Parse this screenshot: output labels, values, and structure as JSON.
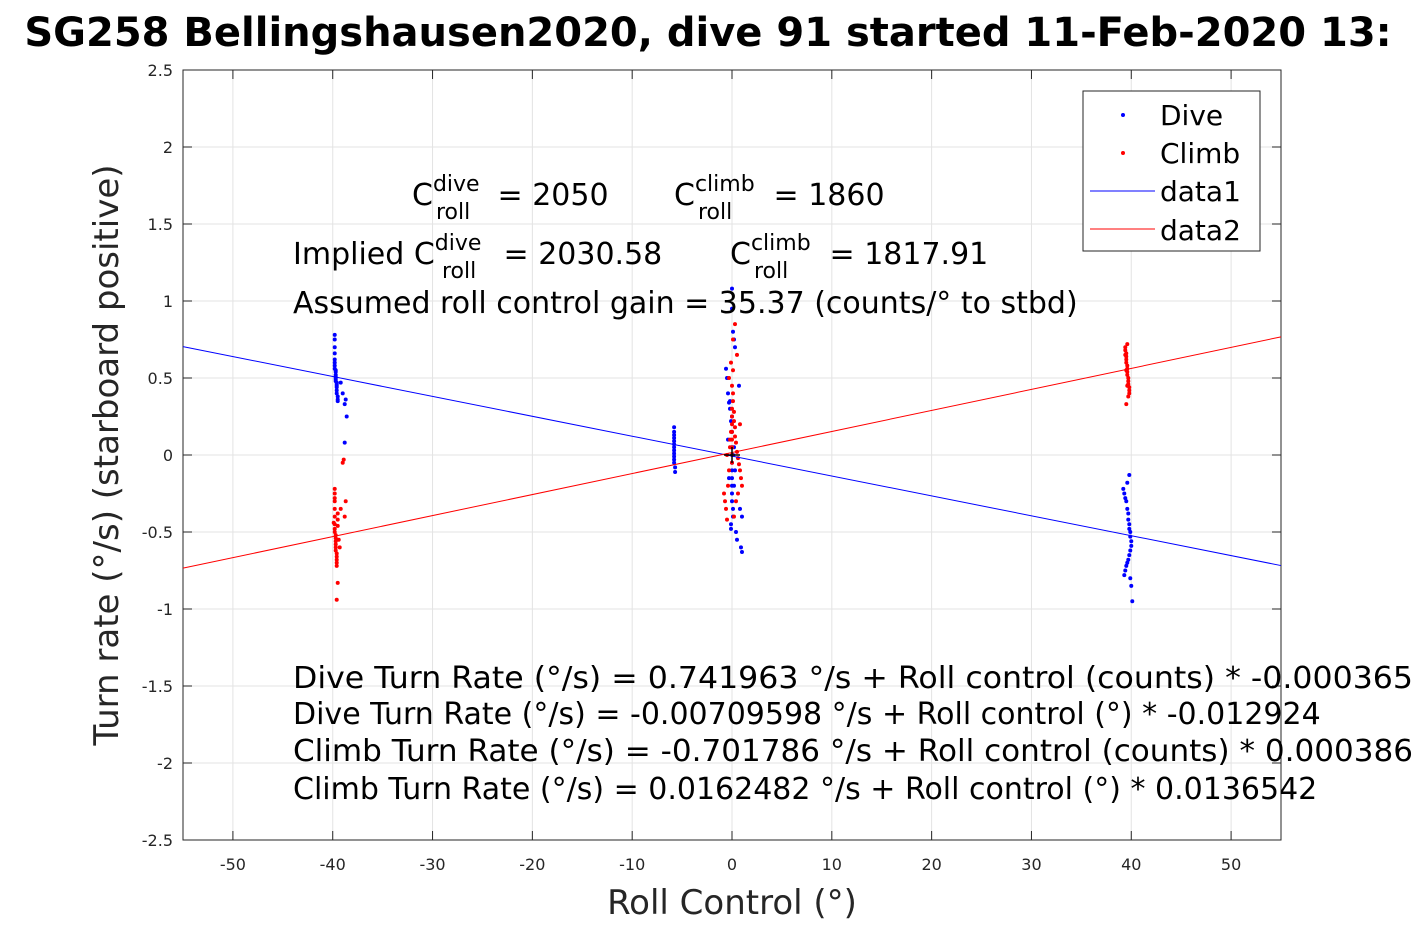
{
  "chart_data": {
    "type": "scatter",
    "title": "SG258 Bellingshausen2020, dive 91 started 11-Feb-2020 13:",
    "xlabel": "Roll Control (°)",
    "ylabel": "Turn rate (°/s) (starboard positive)",
    "xlim": [
      -55,
      55
    ],
    "ylim": [
      -2.5,
      2.5
    ],
    "xticks": [
      -50,
      -40,
      -30,
      -20,
      -10,
      0,
      10,
      20,
      30,
      40,
      50
    ],
    "yticks": [
      -2.5,
      -2,
      -1.5,
      -1,
      -0.5,
      0,
      0.5,
      1,
      1.5,
      2,
      2.5
    ],
    "xtick_labels": [
      "-50",
      "-40",
      "-30",
      "-20",
      "-10",
      "0",
      "10",
      "20",
      "30",
      "40",
      "50"
    ],
    "ytick_labels": [
      "-2.5",
      "-2",
      "-1.5",
      "-1",
      "-0.5",
      "0",
      "0.5",
      "1",
      "1.5",
      "2",
      "2.5"
    ],
    "grid": true,
    "legend_position": "top-right",
    "series": [
      {
        "name": "Dive",
        "kind": "points",
        "color": "#0000ff",
        "x": [
          -39.8,
          -39.8,
          -39.8,
          -39.8,
          -39.8,
          -39.8,
          -39.8,
          -39.8,
          -39.7,
          -39.7,
          -39.7,
          -39.7,
          -39.7,
          -39.7,
          -39.7,
          -39.6,
          -39.6,
          -39.6,
          -39.6,
          -39.6,
          -39.6,
          -39.5,
          -39.5,
          -39.5,
          -39.2,
          -39.0,
          -38.8,
          -38.7,
          -38.6,
          -38.8,
          -5.8,
          -5.8,
          -5.8,
          -5.8,
          -5.8,
          -5.8,
          -5.8,
          -5.8,
          -5.8,
          -5.8,
          -5.8,
          -5.8,
          -5.7,
          -5.7,
          -0.6,
          -0.5,
          -0.4,
          -0.3,
          -0.2,
          -0.1,
          0,
          0,
          0.1,
          0.2,
          0.3,
          0,
          0,
          0,
          0,
          0,
          0,
          0,
          0,
          0.1,
          0.1,
          -0.1,
          -0.1,
          0.2,
          0.3,
          -0.2,
          0.4,
          0.5,
          0.8,
          1.0,
          0.9,
          1.0,
          0.7,
          -0.4,
          -0.3,
          0.1,
          0,
          0.2,
          39.2,
          39.3,
          39.4,
          39.5,
          39.6,
          39.7,
          39.7,
          39.8,
          39.8,
          39.9,
          39.9,
          40.0,
          40.0,
          39.9,
          39.8,
          39.7,
          39.6,
          39.5,
          39.4,
          39.3,
          39.9,
          40.0,
          40.1,
          39.8,
          39.6
        ],
        "y": [
          0.78,
          0.75,
          0.7,
          0.66,
          0.62,
          0.6,
          0.58,
          0.56,
          0.55,
          0.54,
          0.52,
          0.51,
          0.5,
          0.49,
          0.48,
          0.47,
          0.46,
          0.45,
          0.44,
          0.42,
          0.4,
          0.38,
          0.36,
          0.35,
          0.47,
          0.4,
          0.33,
          0.36,
          0.25,
          0.08,
          0.18,
          0.15,
          0.13,
          0.11,
          0.09,
          0.07,
          0.05,
          0.03,
          0.01,
          -0.01,
          -0.03,
          -0.05,
          -0.08,
          -0.11,
          0.56,
          0.5,
          0.4,
          0.34,
          0.3,
          0.22,
          1.08,
          0.95,
          0.8,
          0.75,
          0.7,
          0.15,
          0.05,
          -0.05,
          -0.1,
          -0.15,
          -0.2,
          -0.25,
          -0.3,
          -0.35,
          -0.4,
          -0.45,
          -0.48,
          -0.2,
          -0.1,
          0.35,
          -0.5,
          -0.55,
          -0.35,
          -0.4,
          -0.6,
          -0.63,
          0.45,
          0.1,
          -0.15,
          0.0,
          0.25,
          0.05,
          -0.22,
          -0.25,
          -0.28,
          -0.3,
          -0.35,
          -0.38,
          -0.42,
          -0.45,
          -0.48,
          -0.5,
          -0.53,
          -0.56,
          -0.59,
          -0.62,
          -0.65,
          -0.68,
          -0.7,
          -0.72,
          -0.75,
          -0.78,
          -0.8,
          -0.85,
          -0.95,
          -0.13,
          -0.18
        ]
      },
      {
        "name": "Climb",
        "kind": "points",
        "color": "#ff0000",
        "x": [
          -39.8,
          -39.8,
          -39.8,
          -39.8,
          -39.8,
          -39.8,
          -39.8,
          -39.8,
          -39.7,
          -39.7,
          -39.7,
          -39.7,
          -39.7,
          -39.7,
          -39.6,
          -39.6,
          -39.6,
          -39.6,
          -39.6,
          -39.5,
          -39.5,
          -39.5,
          -39.4,
          -39.3,
          -39.2,
          -39.0,
          -38.9,
          -38.8,
          -38.7,
          -39.5,
          -39.6,
          -39.9,
          -39.8,
          -0.8,
          -0.7,
          -0.6,
          -0.5,
          -0.4,
          -0.3,
          -0.2,
          -0.1,
          0,
          0,
          0,
          0,
          0,
          0,
          0,
          0,
          0.1,
          0.1,
          0.2,
          0.2,
          0.3,
          0.3,
          0.4,
          0.5,
          0.6,
          0.7,
          0.8,
          0.9,
          1.0,
          -0.3,
          -0.1,
          0.1,
          0.3,
          0.5,
          0.2,
          0.4,
          0.6,
          -0.2,
          0,
          0.1,
          -0.5,
          0.8,
          39.4,
          39.4,
          39.5,
          39.5,
          39.5,
          39.5,
          39.6,
          39.6,
          39.6,
          39.6,
          39.7,
          39.7,
          39.7,
          39.8,
          39.8,
          39.8,
          39.4,
          39.5,
          39.6,
          39.7,
          39.5,
          39.6
        ],
        "y": [
          -0.22,
          -0.25,
          -0.3,
          -0.35,
          -0.4,
          -0.45,
          -0.48,
          -0.5,
          -0.52,
          -0.54,
          -0.56,
          -0.58,
          -0.6,
          -0.62,
          -0.64,
          -0.66,
          -0.68,
          -0.7,
          -0.72,
          -0.46,
          -0.42,
          -0.38,
          -0.55,
          -0.6,
          -0.35,
          -0.05,
          -0.03,
          -0.4,
          -0.3,
          -0.83,
          -0.94,
          -0.44,
          -0.28,
          -0.25,
          -0.3,
          -0.35,
          -0.42,
          -0.2,
          -0.1,
          0.05,
          0.15,
          0.3,
          0.25,
          0.2,
          0.15,
          0.1,
          0.05,
          0.0,
          -0.05,
          0.4,
          0.35,
          0.28,
          0.22,
          0.18,
          0.12,
          0.08,
          0.02,
          -0.02,
          -0.06,
          -0.1,
          -0.15,
          -0.2,
          0.5,
          0.6,
          0.75,
          0.85,
          0.65,
          -0.4,
          -0.3,
          -0.25,
          0.1,
          0.45,
          0.55,
          0.0,
          0.2,
          0.7,
          0.68,
          0.66,
          0.64,
          0.62,
          0.6,
          0.58,
          0.56,
          0.54,
          0.52,
          0.5,
          0.48,
          0.46,
          0.44,
          0.42,
          0.4,
          0.65,
          0.55,
          0.45,
          0.38,
          0.33,
          0.72
        ]
      },
      {
        "name": "data1",
        "kind": "line",
        "color": "#0000ff",
        "x": [
          -55,
          55
        ],
        "y": [
          0.7037,
          -0.7179
        ]
      },
      {
        "name": "data2",
        "kind": "line",
        "color": "#ff0000",
        "x": [
          -55,
          55
        ],
        "y": [
          -0.7347,
          0.7672
        ]
      }
    ],
    "marker": {
      "x": 0,
      "y": 0,
      "symbol": "+",
      "color": "#000000"
    },
    "annotations": {
      "c_dive_pre": "C",
      "c_dive_sup": "dive",
      "c_dive_sub": "roll",
      "c_dive_post": " = 2050",
      "c_climb_pre": "C",
      "c_climb_sup": "climb",
      "c_climb_sub": "roll",
      "c_climb_post": " = 1860",
      "imp_dive_pre": "Implied C",
      "imp_dive_sup": "dive",
      "imp_dive_sub": "roll",
      "imp_dive_post": " = 2030.58",
      "imp_climb_pre": "C",
      "imp_climb_sup": "climb",
      "imp_climb_sub": "roll",
      "imp_climb_post": " = 1817.91",
      "gain": "Assumed roll control gain = 35.37 (counts/° to stbd)",
      "eq1": "Dive Turn Rate (°/s) = 0.741963 °/s + Roll control (counts) * -0.000365",
      "eq2": "Dive Turn Rate (°/s) = -0.00709598 °/s + Roll control (°) * -0.012924",
      "eq3": "Climb Turn Rate (°/s) = -0.701786 °/s + Roll control (counts) * 0.000386",
      "eq4": "Climb Turn Rate (°/s) = 0.0162482 °/s + Roll control (°) * 0.0136542"
    },
    "legend": [
      "Dive",
      "Climb",
      "data1",
      "data2"
    ]
  }
}
